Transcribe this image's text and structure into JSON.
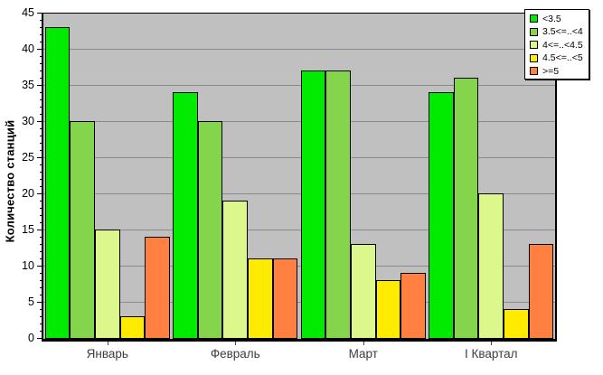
{
  "chart_data": {
    "type": "bar",
    "title": "",
    "categories": [
      "Январь",
      "Февраль",
      "Март",
      "I Квартал"
    ],
    "series": [
      {
        "name": "<3.5",
        "color": "#00EB00",
        "values": [
          43,
          34,
          37,
          34
        ]
      },
      {
        "name": "3.5<=..<4",
        "color": "#84D44C",
        "values": [
          30,
          30,
          37,
          36
        ]
      },
      {
        "name": "4<=..<4.5",
        "color": "#DCF88C",
        "values": [
          15,
          19,
          13,
          20
        ]
      },
      {
        "name": "4.5<=..<5",
        "color": "#FFEB00",
        "values": [
          3,
          11,
          8,
          4
        ]
      },
      {
        "name": ">=5",
        "color": "#FF8040",
        "values": [
          14,
          11,
          9,
          13
        ]
      }
    ],
    "xlabel": "",
    "ylabel": "Количество станций",
    "ylim": [
      0,
      45
    ],
    "ytick_major_step": 5,
    "ytick_minor_step": 1,
    "grid": true,
    "legend_position": "top-right",
    "plot_background": "#C0C0C0",
    "grid_color": "#8A8A8A",
    "axis_color": "#000000"
  }
}
